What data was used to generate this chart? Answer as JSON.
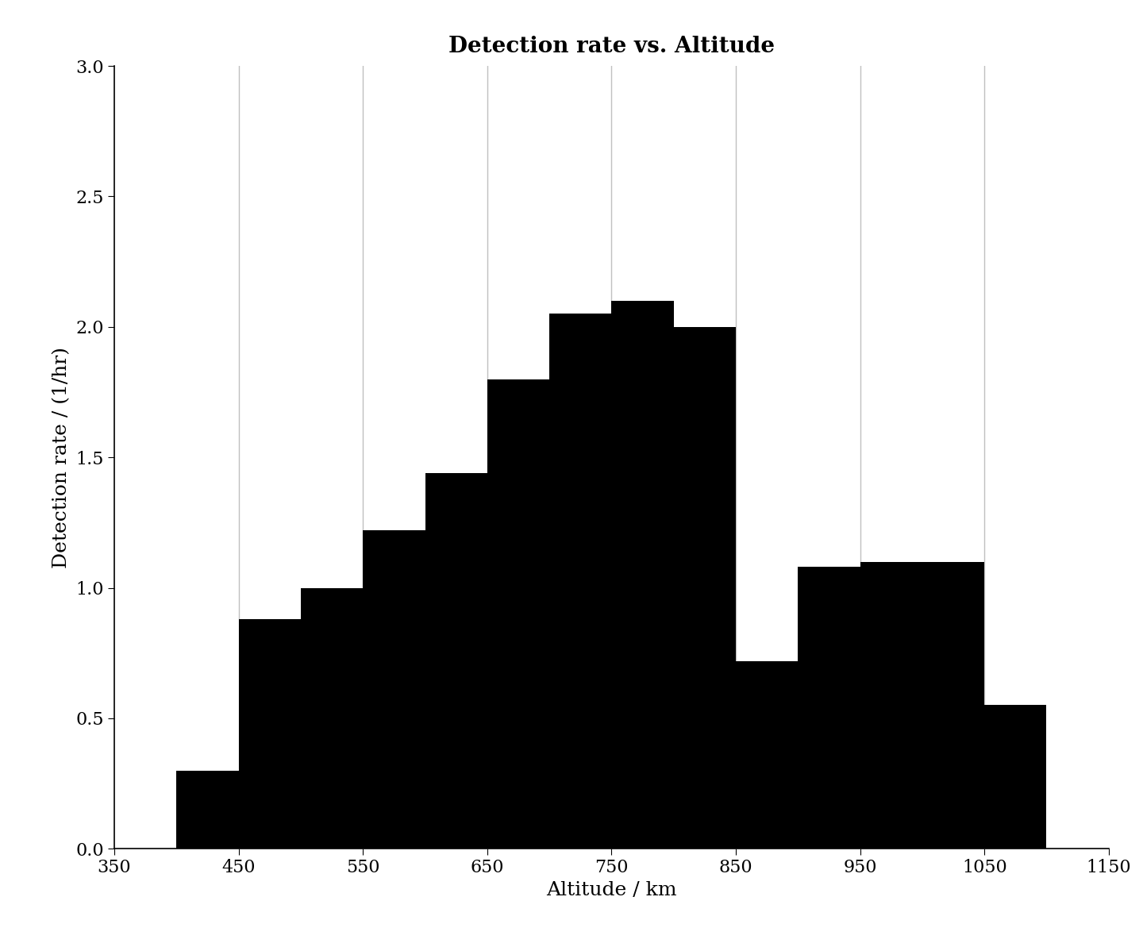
{
  "title": "Detection rate vs. Altitude",
  "xlabel": "Altitude / km",
  "ylabel": "Detection rate / (1/hr)",
  "xlim": [
    350,
    1150
  ],
  "ylim": [
    0,
    3
  ],
  "bin_left_edges": [
    400,
    450,
    500,
    550,
    600,
    650,
    700,
    750,
    800,
    850,
    900,
    950,
    1000,
    1050
  ],
  "bin_right_edges": [
    450,
    500,
    550,
    600,
    650,
    700,
    750,
    800,
    850,
    900,
    950,
    1000,
    1050,
    1100
  ],
  "bin_heights": [
    0.3,
    0.88,
    1.0,
    1.22,
    1.44,
    1.8,
    2.05,
    2.1,
    2.0,
    0.72,
    1.08,
    1.1,
    1.1,
    0.55
  ],
  "bar_color": "#000000",
  "background_color": "#ffffff",
  "grid_color": "#c0c0c0",
  "grid_x_positions": [
    450,
    550,
    650,
    750,
    850,
    950,
    1050
  ],
  "xticks": [
    350,
    450,
    550,
    650,
    750,
    850,
    950,
    1050,
    1150
  ],
  "yticks": [
    0,
    0.5,
    1.0,
    1.5,
    2.0,
    2.5,
    3.0
  ],
  "title_fontsize": 20,
  "label_fontsize": 18,
  "tick_fontsize": 16
}
